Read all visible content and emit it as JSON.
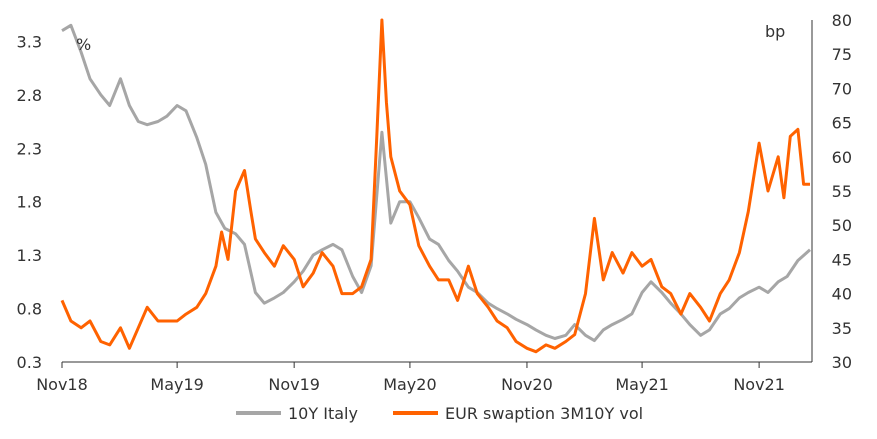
{
  "chart_data": {
    "type": "line",
    "left_axis": {
      "unit_label": "%",
      "ticks": [
        "0.3",
        "0.8",
        "1.3",
        "1.8",
        "2.3",
        "2.8",
        "3.3"
      ],
      "range": [
        0.3,
        3.5
      ]
    },
    "right_axis": {
      "unit_label": "bp",
      "ticks": [
        "30",
        "35",
        "40",
        "45",
        "50",
        "55",
        "60",
        "65",
        "70",
        "75",
        "80"
      ],
      "range": [
        30,
        80
      ]
    },
    "x_ticks": [
      "Nov18",
      "May19",
      "Nov19",
      "May20",
      "Nov20",
      "May21",
      "Nov21"
    ],
    "x_range": [
      "2018-11-01",
      "2022-01-20"
    ],
    "grid": false,
    "legend_position": "bottom",
    "series": [
      {
        "name": "10Y Italy",
        "axis": "left",
        "color": "#a6a6a6",
        "points": [
          [
            "2018-11-01",
            3.4
          ],
          [
            "2018-11-15",
            3.45
          ],
          [
            "2018-12-01",
            3.2
          ],
          [
            "2018-12-15",
            2.95
          ],
          [
            "2019-01-01",
            2.8
          ],
          [
            "2019-01-15",
            2.7
          ],
          [
            "2019-02-01",
            2.95
          ],
          [
            "2019-02-15",
            2.7
          ],
          [
            "2019-03-01",
            2.55
          ],
          [
            "2019-03-15",
            2.52
          ],
          [
            "2019-04-01",
            2.55
          ],
          [
            "2019-04-15",
            2.6
          ],
          [
            "2019-05-01",
            2.7
          ],
          [
            "2019-05-15",
            2.65
          ],
          [
            "2019-06-01",
            2.4
          ],
          [
            "2019-06-15",
            2.15
          ],
          [
            "2019-07-01",
            1.7
          ],
          [
            "2019-07-15",
            1.55
          ],
          [
            "2019-08-01",
            1.5
          ],
          [
            "2019-08-15",
            1.4
          ],
          [
            "2019-09-01",
            0.95
          ],
          [
            "2019-09-15",
            0.85
          ],
          [
            "2019-10-01",
            0.9
          ],
          [
            "2019-10-15",
            0.95
          ],
          [
            "2019-11-01",
            1.05
          ],
          [
            "2019-11-15",
            1.15
          ],
          [
            "2019-12-01",
            1.3
          ],
          [
            "2019-12-15",
            1.35
          ],
          [
            "2020-01-01",
            1.4
          ],
          [
            "2020-01-15",
            1.35
          ],
          [
            "2020-02-01",
            1.1
          ],
          [
            "2020-02-15",
            0.95
          ],
          [
            "2020-03-01",
            1.2
          ],
          [
            "2020-03-18",
            2.45
          ],
          [
            "2020-04-01",
            1.6
          ],
          [
            "2020-04-15",
            1.8
          ],
          [
            "2020-05-01",
            1.8
          ],
          [
            "2020-05-15",
            1.65
          ],
          [
            "2020-06-01",
            1.45
          ],
          [
            "2020-06-15",
            1.4
          ],
          [
            "2020-07-01",
            1.25
          ],
          [
            "2020-07-15",
            1.15
          ],
          [
            "2020-08-01",
            1.0
          ],
          [
            "2020-08-15",
            0.95
          ],
          [
            "2020-09-01",
            0.85
          ],
          [
            "2020-09-15",
            0.8
          ],
          [
            "2020-10-01",
            0.75
          ],
          [
            "2020-10-15",
            0.7
          ],
          [
            "2020-11-01",
            0.65
          ],
          [
            "2020-11-15",
            0.6
          ],
          [
            "2020-12-01",
            0.55
          ],
          [
            "2020-12-15",
            0.52
          ],
          [
            "2021-01-01",
            0.55
          ],
          [
            "2021-01-15",
            0.65
          ],
          [
            "2021-02-01",
            0.55
          ],
          [
            "2021-02-15",
            0.5
          ],
          [
            "2021-03-01",
            0.6
          ],
          [
            "2021-03-15",
            0.65
          ],
          [
            "2021-04-01",
            0.7
          ],
          [
            "2021-04-15",
            0.75
          ],
          [
            "2021-05-01",
            0.95
          ],
          [
            "2021-05-15",
            1.05
          ],
          [
            "2021-06-01",
            0.95
          ],
          [
            "2021-06-15",
            0.85
          ],
          [
            "2021-07-01",
            0.75
          ],
          [
            "2021-07-15",
            0.65
          ],
          [
            "2021-08-01",
            0.55
          ],
          [
            "2021-08-15",
            0.6
          ],
          [
            "2021-09-01",
            0.75
          ],
          [
            "2021-09-15",
            0.8
          ],
          [
            "2021-10-01",
            0.9
          ],
          [
            "2021-10-15",
            0.95
          ],
          [
            "2021-11-01",
            1.0
          ],
          [
            "2021-11-15",
            0.95
          ],
          [
            "2021-12-01",
            1.05
          ],
          [
            "2021-12-15",
            1.1
          ],
          [
            "2022-01-01",
            1.25
          ],
          [
            "2022-01-20",
            1.35
          ]
        ]
      },
      {
        "name": "EUR swaption 3M10Y vol",
        "axis": "right",
        "color": "#ff6200",
        "points": [
          [
            "2018-11-01",
            39.0
          ],
          [
            "2018-11-15",
            36.0
          ],
          [
            "2018-12-01",
            35.0
          ],
          [
            "2018-12-15",
            36.0
          ],
          [
            "2019-01-01",
            33.0
          ],
          [
            "2019-01-15",
            32.5
          ],
          [
            "2019-02-01",
            35.0
          ],
          [
            "2019-02-15",
            32.0
          ],
          [
            "2019-03-01",
            35.0
          ],
          [
            "2019-03-15",
            38.0
          ],
          [
            "2019-04-01",
            36.0
          ],
          [
            "2019-04-15",
            36.0
          ],
          [
            "2019-05-01",
            36.0
          ],
          [
            "2019-05-15",
            37.0
          ],
          [
            "2019-06-01",
            38.0
          ],
          [
            "2019-06-15",
            40.0
          ],
          [
            "2019-07-01",
            44.0
          ],
          [
            "2019-07-10",
            49.0
          ],
          [
            "2019-07-20",
            45.0
          ],
          [
            "2019-08-01",
            55.0
          ],
          [
            "2019-08-15",
            58.0
          ],
          [
            "2019-08-25",
            52.0
          ],
          [
            "2019-09-01",
            48.0
          ],
          [
            "2019-09-15",
            46.0
          ],
          [
            "2019-10-01",
            44.0
          ],
          [
            "2019-10-15",
            47.0
          ],
          [
            "2019-11-01",
            45.0
          ],
          [
            "2019-11-15",
            41.0
          ],
          [
            "2019-12-01",
            43.0
          ],
          [
            "2019-12-15",
            46.0
          ],
          [
            "2020-01-01",
            44.0
          ],
          [
            "2020-01-15",
            40.0
          ],
          [
            "2020-02-01",
            40.0
          ],
          [
            "2020-02-15",
            41.0
          ],
          [
            "2020-03-01",
            45.0
          ],
          [
            "2020-03-10",
            63.0
          ],
          [
            "2020-03-18",
            80.0
          ],
          [
            "2020-03-25",
            68.0
          ],
          [
            "2020-04-01",
            60.0
          ],
          [
            "2020-04-15",
            55.0
          ],
          [
            "2020-05-01",
            53.0
          ],
          [
            "2020-05-15",
            47.0
          ],
          [
            "2020-06-01",
            44.0
          ],
          [
            "2020-06-15",
            42.0
          ],
          [
            "2020-07-01",
            42.0
          ],
          [
            "2020-07-15",
            39.0
          ],
          [
            "2020-08-01",
            44.0
          ],
          [
            "2020-08-15",
            40.0
          ],
          [
            "2020-09-01",
            38.0
          ],
          [
            "2020-09-15",
            36.0
          ],
          [
            "2020-10-01",
            35.0
          ],
          [
            "2020-10-15",
            33.0
          ],
          [
            "2020-11-01",
            32.0
          ],
          [
            "2020-11-15",
            31.5
          ],
          [
            "2020-12-01",
            32.5
          ],
          [
            "2020-12-15",
            32.0
          ],
          [
            "2021-01-01",
            33.0
          ],
          [
            "2021-01-15",
            34.0
          ],
          [
            "2021-02-01",
            40.0
          ],
          [
            "2021-02-15",
            51.0
          ],
          [
            "2021-03-01",
            42.0
          ],
          [
            "2021-03-15",
            46.0
          ],
          [
            "2021-04-01",
            43.0
          ],
          [
            "2021-04-15",
            46.0
          ],
          [
            "2021-05-01",
            44.0
          ],
          [
            "2021-05-15",
            45.0
          ],
          [
            "2021-06-01",
            41.0
          ],
          [
            "2021-06-15",
            40.0
          ],
          [
            "2021-07-01",
            37.0
          ],
          [
            "2021-07-15",
            40.0
          ],
          [
            "2021-08-01",
            38.0
          ],
          [
            "2021-08-15",
            36.0
          ],
          [
            "2021-09-01",
            40.0
          ],
          [
            "2021-09-15",
            42.0
          ],
          [
            "2021-10-01",
            46.0
          ],
          [
            "2021-10-15",
            52.0
          ],
          [
            "2021-11-01",
            62.0
          ],
          [
            "2021-11-15",
            55.0
          ],
          [
            "2021-12-01",
            60.0
          ],
          [
            "2021-12-10",
            54.0
          ],
          [
            "2021-12-20",
            63.0
          ],
          [
            "2022-01-01",
            64.0
          ],
          [
            "2022-01-10",
            56.0
          ],
          [
            "2022-01-20",
            56.0
          ]
        ]
      }
    ]
  }
}
